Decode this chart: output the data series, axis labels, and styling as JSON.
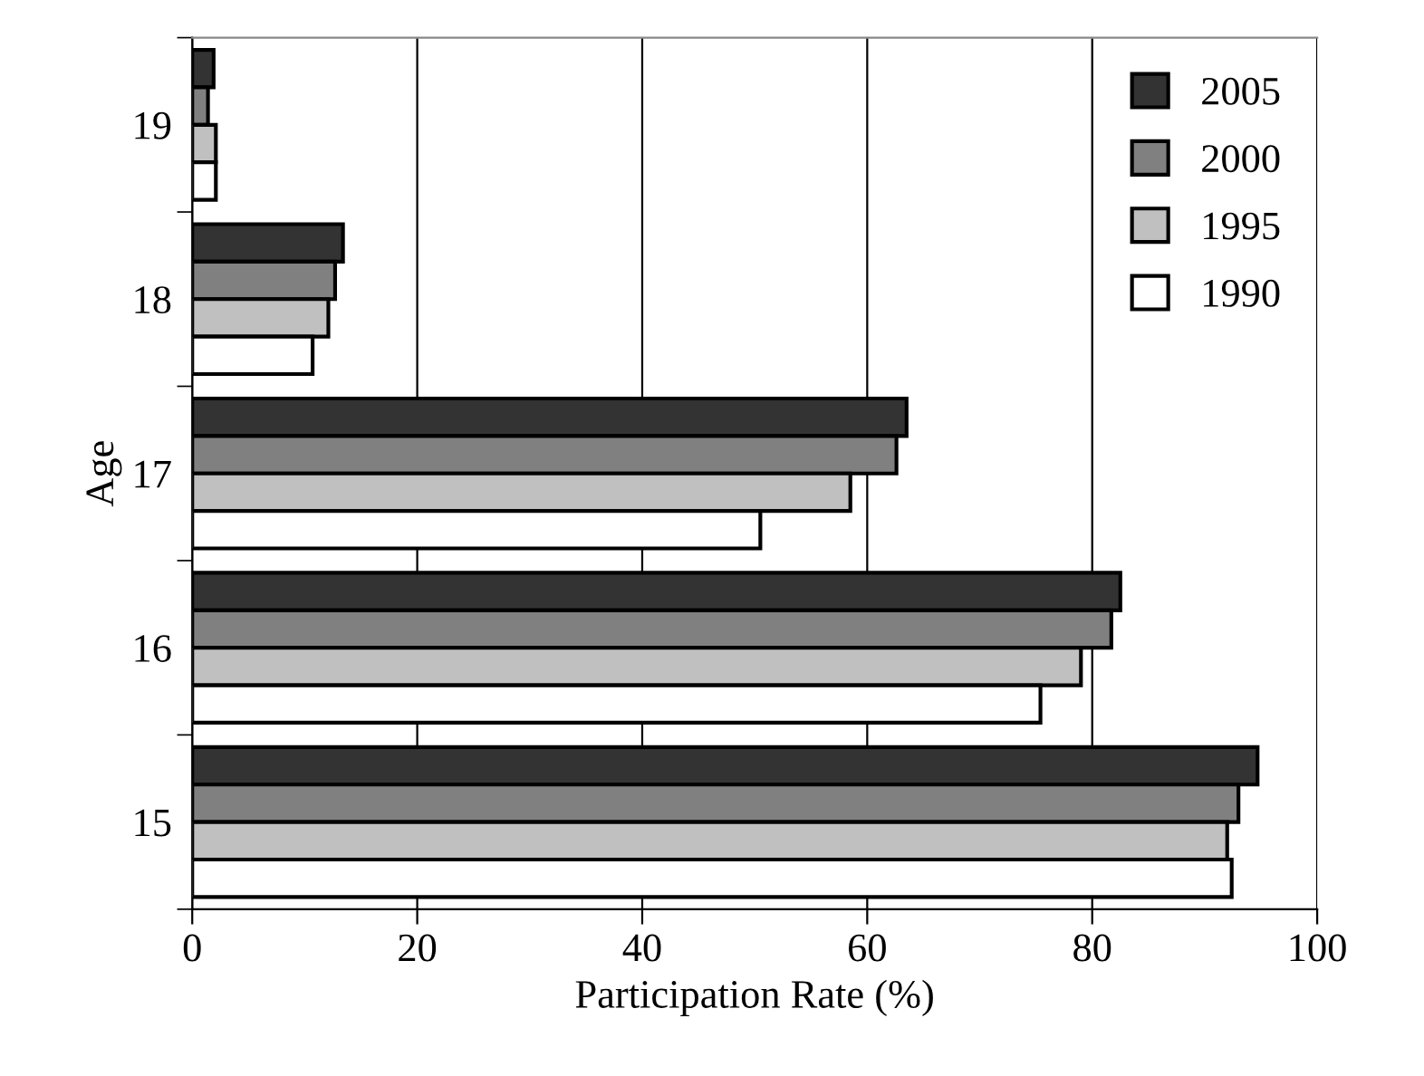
{
  "chart_data": {
    "type": "bar",
    "orientation": "horizontal",
    "xlabel": "Participation Rate (%)",
    "ylabel": "Age",
    "categories": [
      "19",
      "18",
      "17",
      "16",
      "15"
    ],
    "series": [
      {
        "name": "2005",
        "color": "#333333",
        "values": [
          1.9,
          13.4,
          63.5,
          82.5,
          94.7
        ]
      },
      {
        "name": "2000",
        "color": "#808080",
        "values": [
          1.4,
          12.7,
          62.6,
          81.7,
          93.0
        ]
      },
      {
        "name": "1995",
        "color": "#c0c0c0",
        "values": [
          2.1,
          12.1,
          58.5,
          79.0,
          92.0
        ]
      },
      {
        "name": "1990",
        "color": "#ffffff",
        "values": [
          2.1,
          10.7,
          50.5,
          75.4,
          92.4
        ]
      }
    ],
    "xlim": [
      0,
      100
    ],
    "xticks": [
      0,
      20,
      40,
      60,
      80,
      100
    ],
    "grid": "x",
    "legend": "top right"
  }
}
